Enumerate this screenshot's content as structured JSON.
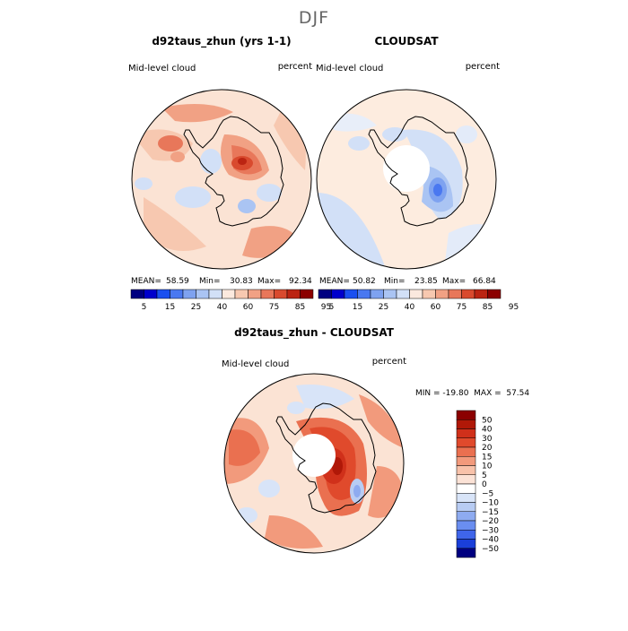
{
  "page_title": "DJF",
  "colors": {
    "scale_top": [
      "#000080",
      "#0000cc",
      "#1a4ff0",
      "#4a78f0",
      "#7ea2f0",
      "#aac4f3",
      "#d2e0f7",
      "#fbe9de",
      "#f7c8b0",
      "#f1a184",
      "#e8775a",
      "#d94a2e",
      "#bb2412",
      "#8b0000"
    ],
    "scale_diff": [
      "#8b0000",
      "#b01808",
      "#d0301a",
      "#e04a2c",
      "#ea7050",
      "#f29a7c",
      "#f8c2aa",
      "#fbe2d6",
      "#ffffff",
      "#d8e4f8",
      "#b8ccf3",
      "#8eabf0",
      "#6a8ef0",
      "#3f65ea",
      "#1a3fd9",
      "#000080"
    ],
    "land_outline": "#000000",
    "ocean_base": "#fbe3d4",
    "ocean_base_right": "#fdecdf",
    "positive": "#e85a3c",
    "negative": "#9eb8ee"
  },
  "panels": [
    {
      "title": "d92taus_zhun (yrs 1-1)",
      "left_label": "Mid-level cloud",
      "right_label": "percent",
      "stats": {
        "mean_label": "MEAN=",
        "mean": "58.59",
        "min_label": "Min=",
        "min": "30.83",
        "max_label": "Max=",
        "max": "92.34"
      },
      "colorbar_ticks": [
        "5",
        "15",
        "25",
        "40",
        "60",
        "75",
        "85",
        "95"
      ]
    },
    {
      "title": "CLOUDSAT",
      "left_label": "Mid-level cloud",
      "right_label": "percent",
      "stats": {
        "mean_label": "MEAN=",
        "mean": "50.82",
        "min_label": "Min=",
        "min": "23.85",
        "max_label": "Max=",
        "max": "66.84"
      },
      "colorbar_ticks": [
        "5",
        "15",
        "25",
        "40",
        "60",
        "75",
        "85",
        "95"
      ]
    },
    {
      "title": "d92taus_zhun - CLOUDSAT",
      "left_label": "Mid-level cloud",
      "right_label": "percent",
      "range_text": "MIN = -19.80  MAX =  57.54",
      "colorbar_ticks": [
        "50",
        "40",
        "30",
        "20",
        "15",
        "10",
        "5",
        "0",
        "−5",
        "−10",
        "−15",
        "−20",
        "−30",
        "−40",
        "−50"
      ]
    }
  ],
  "chart_data": [
    {
      "type": "heatmap",
      "title": "d92taus_zhun (yrs 1-1)",
      "variable": "Mid-level cloud",
      "units": "percent",
      "season": "DJF",
      "projection": "south polar stereographic",
      "mean": 58.59,
      "min": 30.83,
      "max": 92.34,
      "contour_levels": [
        5,
        15,
        25,
        40,
        60,
        75,
        85,
        95
      ]
    },
    {
      "type": "heatmap",
      "title": "CLOUDSAT",
      "variable": "Mid-level cloud",
      "units": "percent",
      "season": "DJF",
      "projection": "south polar stereographic",
      "mean": 50.82,
      "min": 23.85,
      "max": 66.84,
      "contour_levels": [
        5,
        15,
        25,
        40,
        60,
        75,
        85,
        95
      ]
    },
    {
      "type": "heatmap",
      "title": "d92taus_zhun - CLOUDSAT",
      "variable": "Mid-level cloud",
      "units": "percent",
      "season": "DJF",
      "projection": "south polar stereographic",
      "min": -19.8,
      "max": 57.54,
      "contour_levels": [
        -50,
        -40,
        -30,
        -20,
        -15,
        -10,
        -5,
        0,
        5,
        10,
        15,
        20,
        30,
        40,
        50
      ]
    }
  ]
}
